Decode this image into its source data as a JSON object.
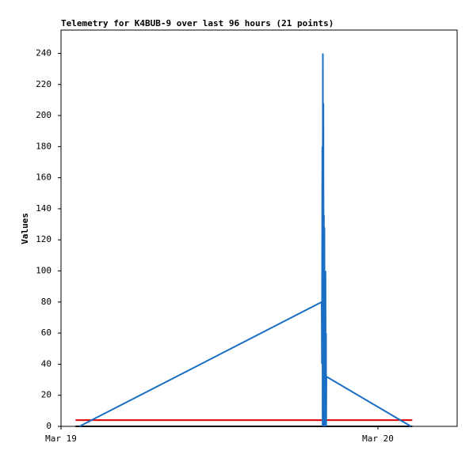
{
  "chart_data": {
    "type": "line",
    "title": "Telemetry for K4BUB-9 over last 96 hours (21 points)",
    "ylabel": "Values",
    "xlim": [
      0,
      30
    ],
    "xticks": [
      {
        "value": 0,
        "label": "Mar 19"
      },
      {
        "value": 24,
        "label": "Mar 20"
      }
    ],
    "ylim": [
      0,
      255
    ],
    "yticks": [
      0,
      20,
      40,
      60,
      80,
      100,
      120,
      140,
      160,
      180,
      200,
      220,
      240
    ],
    "series": [
      {
        "color": "#000000",
        "x": [
          1.1,
          26.6
        ],
        "values": [
          0,
          0
        ]
      },
      {
        "color": "#e00000",
        "x": [
          1.1,
          26.6
        ],
        "values": [
          4,
          4
        ]
      },
      {
        "color": "#1a6fc4",
        "x": [
          1.4,
          19.74,
          19.76,
          19.79,
          19.81,
          19.83,
          19.85,
          19.87,
          19.89,
          19.91,
          19.93,
          19.95,
          19.97,
          19.99,
          20.01,
          20.03,
          20.05,
          20.07,
          20.08,
          20.1,
          26.5
        ],
        "values": [
          0,
          80,
          40,
          180,
          0,
          240,
          0,
          208,
          40,
          136,
          0,
          128,
          0,
          40,
          0,
          100,
          0,
          60,
          0,
          32,
          0
        ]
      }
    ]
  }
}
